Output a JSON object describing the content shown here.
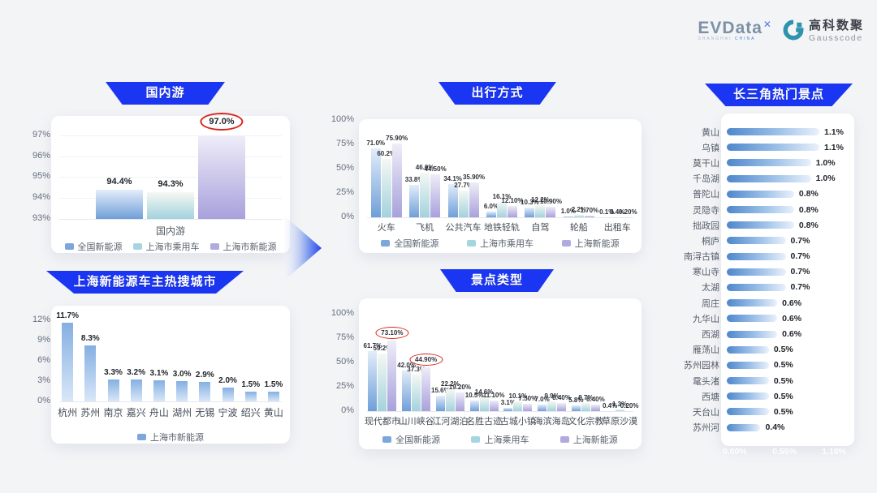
{
  "header": {
    "evdata_text": "EVData",
    "evdata_mark": "✕",
    "evdata_sub_left": "SHANGHAI",
    "evdata_sub_right": "CHINA",
    "gausscode_cn": "高科数聚",
    "gausscode_en": "Gausscode"
  },
  "colors": {
    "ribbon_blue": "#1b36f3",
    "series_national_ev": "#7ca7dd",
    "series_shanghai_pv": "#a5d6e0",
    "series_shanghai_ev": "#b1aae0",
    "highlight_red": "#d9251d"
  },
  "chart_data": [
    {
      "id": "domestic",
      "type": "bar",
      "title": "国内游",
      "xlabel": "国内游",
      "ymin": 93,
      "ymax": 97.5,
      "yticks": [
        "93%",
        "94%",
        "95%",
        "96%",
        "97%"
      ],
      "ytick_values": [
        93,
        94,
        95,
        96,
        97
      ],
      "bars": [
        {
          "series": "全国新能源",
          "value": 94.4,
          "label": "94.4%",
          "color": "s1",
          "circled": false
        },
        {
          "series": "上海市乘用车",
          "value": 94.3,
          "label": "94.3%",
          "color": "s2",
          "circled": false
        },
        {
          "series": "上海市新能源",
          "value": 97.0,
          "label": "97.0%",
          "color": "s3",
          "circled": true
        }
      ],
      "legend": [
        "全国新能源",
        "上海市乘用车",
        "上海市新能源"
      ]
    },
    {
      "id": "cities",
      "type": "bar",
      "title": "上海新能源车主热搜城市",
      "ymin": 0,
      "ymax": 13,
      "yticks": [
        "0%",
        "3%",
        "6%",
        "9%",
        "12%"
      ],
      "ytick_values": [
        0,
        3,
        6,
        9,
        12
      ],
      "categories": [
        "杭州",
        "苏州",
        "南京",
        "嘉兴",
        "舟山",
        "湖州",
        "无锡",
        "宁波",
        "绍兴",
        "黄山"
      ],
      "values": [
        11.7,
        8.3,
        3.3,
        3.2,
        3.1,
        3.0,
        2.9,
        2.0,
        1.5,
        1.5
      ],
      "labels": [
        "11.7%",
        "8.3%",
        "3.3%",
        "3.2%",
        "3.1%",
        "3.0%",
        "2.9%",
        "2.0%",
        "1.5%",
        "1.5%"
      ],
      "legend": [
        "上海市新能源"
      ]
    },
    {
      "id": "transport",
      "type": "grouped-bar",
      "title": "出行方式",
      "ymin": 0,
      "ymax": 107,
      "yticks": [
        "0%",
        "25%",
        "50%",
        "75%",
        "100%"
      ],
      "ytick_values": [
        0,
        25,
        50,
        75,
        100
      ],
      "categories": [
        "火车",
        "飞机",
        "公共汽车",
        "地铁轻轨",
        "自驾",
        "轮船",
        "出租车"
      ],
      "series": [
        {
          "name": "全国新能源",
          "color": "s1",
          "values": [
            71.0,
            33.8,
            34.1,
            6.0,
            10.3,
            1.0,
            0.1
          ],
          "labels": [
            "71.0%",
            "33.8%",
            "34.1%",
            "6.0%",
            "10.3%",
            "1.0%",
            "0.1%"
          ],
          "circled": []
        },
        {
          "name": "上海市乘用车",
          "color": "s2",
          "values": [
            60.2,
            46.0,
            27.7,
            16.1,
            12.2,
            2.2,
            0.4
          ],
          "labels": [
            "60.2%",
            "46.0%",
            "27.7%",
            "16.1%",
            "12.2%",
            "2.2%",
            "0.4%"
          ],
          "circled": []
        },
        {
          "name": "上海新能源",
          "color": "s3",
          "values": [
            75.9,
            44.5,
            35.9,
            12.1,
            10.9,
            1.7,
            0.2
          ],
          "labels": [
            "75.90%",
            "44.50%",
            "35.90%",
            "12.10%",
            "10.90%",
            "1.70%",
            "0.20%"
          ],
          "circled": []
        }
      ],
      "legend": [
        "全国新能源",
        "上海市乘用车",
        "上海新能源"
      ]
    },
    {
      "id": "attractions",
      "type": "grouped-bar",
      "title": "景点类型",
      "ymin": 0,
      "ymax": 107,
      "yticks": [
        "0%",
        "25%",
        "50%",
        "75%",
        "100%"
      ],
      "ytick_values": [
        0,
        25,
        50,
        75,
        100
      ],
      "categories": [
        "现代都市",
        "山川峡谷",
        "江河湖泊",
        "名胜古迹",
        "古城小镇",
        "海滨海岛",
        "文化宗教",
        "草原沙漠"
      ],
      "series": [
        {
          "name": "全国新能源",
          "color": "s1",
          "values": [
            61.7,
            42.0,
            15.6,
            10.5,
            3.1,
            7.0,
            5.8,
            0.4
          ],
          "labels": [
            "61.7%",
            "42.0%",
            "15.6%",
            "10.5%",
            "3.1%",
            "7.0%",
            "5.8%",
            "0.4%"
          ],
          "circled": []
        },
        {
          "name": "上海乘用车",
          "color": "s2",
          "values": [
            59.2,
            37.3,
            22.2,
            14.6,
            10.1,
            9.9,
            8.7,
            1.3
          ],
          "labels": [
            "59.2%",
            "37.3%",
            "22.2%",
            "14.6%",
            "10.1%",
            "9.9%",
            "8.7%",
            "1.3%"
          ],
          "circled": []
        },
        {
          "name": "上海新能源",
          "color": "s3",
          "values": [
            73.1,
            44.9,
            19.2,
            11.1,
            7.5,
            8.4,
            6.4,
            0.2
          ],
          "labels": [
            "73.10%",
            "44.90%",
            "19.20%",
            "11.10%",
            "7.50%",
            "8.40%",
            "6.40%",
            "0.20%"
          ],
          "circled": [
            0,
            1
          ]
        }
      ],
      "legend": [
        "全国新能源",
        "上海乘用车",
        "上海新能源"
      ]
    },
    {
      "id": "hotspots",
      "type": "hbar",
      "title": "长三角热门景点",
      "xmax": 1.15,
      "xticks": [
        "0.00%",
        "0.55%",
        "1.10%"
      ],
      "categories": [
        "黄山",
        "乌镇",
        "莫干山",
        "千岛湖",
        "普陀山",
        "灵隐寺",
        "拙政园",
        "桐庐",
        "南浔古镇",
        "寒山寺",
        "太湖",
        "周庄",
        "九华山",
        "西湖",
        "雁荡山",
        "苏州园林",
        "鼋头渚",
        "西塘",
        "天台山",
        "苏州河"
      ],
      "values": [
        1.1,
        1.1,
        1.0,
        1.0,
        0.8,
        0.8,
        0.8,
        0.7,
        0.7,
        0.7,
        0.7,
        0.6,
        0.6,
        0.6,
        0.5,
        0.5,
        0.5,
        0.5,
        0.5,
        0.4
      ],
      "labels": [
        "1.1%",
        "1.1%",
        "1.0%",
        "1.0%",
        "0.8%",
        "0.8%",
        "0.8%",
        "0.7%",
        "0.7%",
        "0.7%",
        "0.7%",
        "0.6%",
        "0.6%",
        "0.6%",
        "0.5%",
        "0.5%",
        "0.5%",
        "0.5%",
        "0.5%",
        "0.4%"
      ]
    }
  ]
}
